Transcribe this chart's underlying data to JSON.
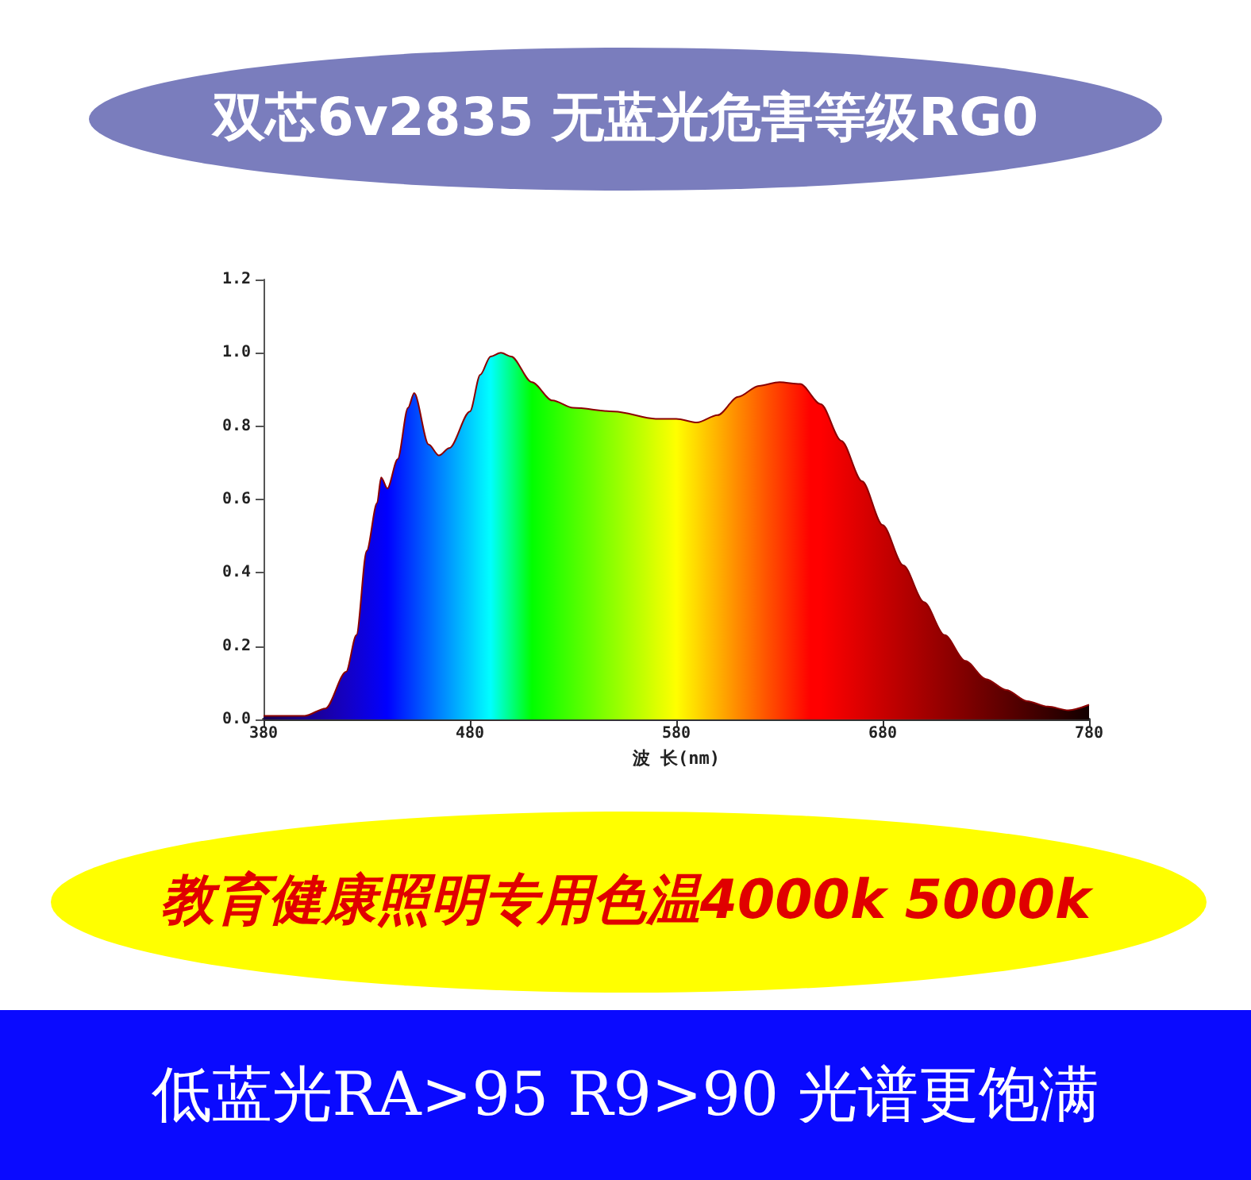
{
  "chart_data": {
    "type": "area",
    "title": "双芯6v2835 无蓝光危害等级RG0",
    "subtitle": "教育健康照明专用色温4000k  5000k",
    "xlabel": "波 长(nm)",
    "annotations": [
      "低蓝光RA>95  R9>90  光谱更饱满"
    ],
    "x": [
      380,
      400,
      410,
      420,
      425,
      430,
      435,
      437,
      440,
      445,
      450,
      453,
      460,
      465,
      470,
      480,
      485,
      490,
      495,
      500,
      510,
      520,
      530,
      550,
      570,
      580,
      590,
      600,
      610,
      620,
      630,
      640,
      650,
      660,
      670,
      680,
      690,
      700,
      710,
      720,
      730,
      740,
      750,
      760,
      770,
      780
    ],
    "series": [
      {
        "color": "#8b0000",
        "values": [
          0.01,
          0.01,
          0.03,
          0.13,
          0.23,
          0.46,
          0.59,
          0.66,
          0.63,
          0.71,
          0.85,
          0.89,
          0.75,
          0.72,
          0.74,
          0.84,
          0.94,
          0.99,
          1.0,
          0.99,
          0.92,
          0.87,
          0.85,
          0.84,
          0.82,
          0.82,
          0.81,
          0.83,
          0.88,
          0.91,
          0.92,
          0.915,
          0.86,
          0.76,
          0.65,
          0.53,
          0.42,
          0.32,
          0.23,
          0.16,
          0.11,
          0.08,
          0.05,
          0.035,
          0.025,
          0.04
        ]
      }
    ],
    "xlim": [
      380,
      780
    ],
    "xticks": [
      380,
      480,
      580,
      680,
      780
    ],
    "ylim": [
      0,
      1.2
    ],
    "yticks": [
      {
        "value": 0,
        "label": "0.0"
      },
      {
        "value": 0.2,
        "label": "0.2"
      },
      {
        "value": 0.4,
        "label": "0.4"
      },
      {
        "value": 0.6,
        "label": "0.6"
      },
      {
        "value": 0.8,
        "label": "0.8"
      },
      {
        "value": 1,
        "label": "1.0"
      },
      {
        "value": 1.2,
        "label": "1.2"
      }
    ],
    "grid": false,
    "marker": "none"
  }
}
